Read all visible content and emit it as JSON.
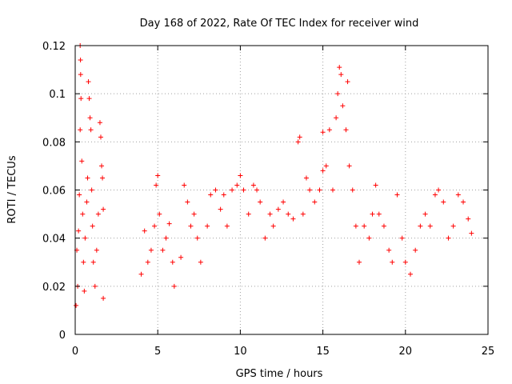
{
  "chart_data": {
    "type": "scatter",
    "title": "Day 168 of 2022, Rate Of TEC Index for receiver wind",
    "xlabel": "GPS time / hours",
    "ylabel": "ROTI / TECUs",
    "xlim": [
      0,
      25
    ],
    "ylim": [
      0,
      0.12
    ],
    "xticks": [
      0,
      5,
      10,
      15,
      20,
      25
    ],
    "yticks": [
      0,
      0.02,
      0.04,
      0.06,
      0.08,
      0.1,
      0.12
    ],
    "xtick_labels": [
      "0",
      "5",
      "10",
      "15",
      "20",
      "25"
    ],
    "ytick_labels": [
      "0",
      "0.02",
      "0.04",
      "0.06",
      "0.08",
      "0.1",
      "0.12"
    ],
    "grid": true,
    "marker": "+",
    "series_color": "#ff0000",
    "series": [
      {
        "points": [
          [
            0.05,
            0.012
          ],
          [
            0.1,
            0.035
          ],
          [
            0.15,
            0.02
          ],
          [
            0.2,
            0.043
          ],
          [
            0.25,
            0.058
          ],
          [
            0.3,
            0.085
          ],
          [
            0.3,
            0.12
          ],
          [
            0.32,
            0.114
          ],
          [
            0.33,
            0.108
          ],
          [
            0.35,
            0.098
          ],
          [
            0.4,
            0.072
          ],
          [
            0.45,
            0.05
          ],
          [
            0.5,
            0.03
          ],
          [
            0.55,
            0.018
          ],
          [
            0.6,
            0.04
          ],
          [
            0.7,
            0.055
          ],
          [
            0.75,
            0.065
          ],
          [
            0.8,
            0.105
          ],
          [
            0.85,
            0.098
          ],
          [
            0.9,
            0.09
          ],
          [
            0.95,
            0.085
          ],
          [
            1.0,
            0.06
          ],
          [
            1.05,
            0.045
          ],
          [
            1.1,
            0.03
          ],
          [
            1.2,
            0.02
          ],
          [
            1.3,
            0.035
          ],
          [
            1.4,
            0.05
          ],
          [
            1.5,
            0.088
          ],
          [
            1.55,
            0.082
          ],
          [
            1.6,
            0.07
          ],
          [
            1.65,
            0.065
          ],
          [
            1.7,
            0.052
          ],
          [
            1.7,
            0.015
          ],
          [
            4.0,
            0.025
          ],
          [
            4.2,
            0.043
          ],
          [
            4.4,
            0.03
          ],
          [
            4.6,
            0.035
          ],
          [
            4.8,
            0.045
          ],
          [
            4.9,
            0.062
          ],
          [
            5.0,
            0.066
          ],
          [
            5.1,
            0.05
          ],
          [
            5.3,
            0.035
          ],
          [
            5.5,
            0.04
          ],
          [
            5.7,
            0.046
          ],
          [
            5.9,
            0.03
          ],
          [
            6.0,
            0.02
          ],
          [
            6.4,
            0.032
          ],
          [
            6.6,
            0.062
          ],
          [
            6.8,
            0.055
          ],
          [
            7.0,
            0.045
          ],
          [
            7.2,
            0.05
          ],
          [
            7.4,
            0.04
          ],
          [
            7.6,
            0.03
          ],
          [
            8.0,
            0.045
          ],
          [
            8.2,
            0.058
          ],
          [
            8.5,
            0.06
          ],
          [
            8.8,
            0.052
          ],
          [
            9.0,
            0.058
          ],
          [
            9.2,
            0.045
          ],
          [
            9.5,
            0.06
          ],
          [
            9.8,
            0.062
          ],
          [
            10.0,
            0.066
          ],
          [
            10.2,
            0.06
          ],
          [
            10.5,
            0.05
          ],
          [
            10.8,
            0.062
          ],
          [
            11.0,
            0.06
          ],
          [
            11.2,
            0.055
          ],
          [
            11.5,
            0.04
          ],
          [
            11.8,
            0.05
          ],
          [
            12.0,
            0.045
          ],
          [
            12.3,
            0.052
          ],
          [
            12.6,
            0.055
          ],
          [
            12.9,
            0.05
          ],
          [
            13.2,
            0.048
          ],
          [
            13.5,
            0.08
          ],
          [
            13.6,
            0.082
          ],
          [
            13.8,
            0.05
          ],
          [
            14.0,
            0.065
          ],
          [
            14.2,
            0.06
          ],
          [
            14.5,
            0.055
          ],
          [
            14.8,
            0.06
          ],
          [
            15.0,
            0.068
          ],
          [
            15.0,
            0.084
          ],
          [
            15.2,
            0.07
          ],
          [
            15.4,
            0.085
          ],
          [
            15.6,
            0.06
          ],
          [
            15.8,
            0.09
          ],
          [
            15.9,
            0.1
          ],
          [
            16.0,
            0.111
          ],
          [
            16.1,
            0.108
          ],
          [
            16.2,
            0.095
          ],
          [
            16.4,
            0.085
          ],
          [
            16.5,
            0.105
          ],
          [
            16.6,
            0.07
          ],
          [
            16.8,
            0.06
          ],
          [
            17.0,
            0.045
          ],
          [
            17.2,
            0.03
          ],
          [
            17.5,
            0.045
          ],
          [
            17.8,
            0.04
          ],
          [
            18.0,
            0.05
          ],
          [
            18.2,
            0.062
          ],
          [
            18.4,
            0.05
          ],
          [
            18.7,
            0.045
          ],
          [
            19.0,
            0.035
          ],
          [
            19.2,
            0.03
          ],
          [
            19.5,
            0.058
          ],
          [
            19.8,
            0.04
          ],
          [
            20.0,
            0.03
          ],
          [
            20.3,
            0.025
          ],
          [
            20.6,
            0.035
          ],
          [
            20.9,
            0.045
          ],
          [
            21.2,
            0.05
          ],
          [
            21.5,
            0.045
          ],
          [
            21.8,
            0.058
          ],
          [
            22.0,
            0.06
          ],
          [
            22.3,
            0.055
          ],
          [
            22.6,
            0.04
          ],
          [
            22.9,
            0.045
          ],
          [
            23.2,
            0.058
          ],
          [
            23.5,
            0.055
          ],
          [
            23.8,
            0.048
          ],
          [
            24.0,
            0.042
          ]
        ]
      }
    ]
  }
}
